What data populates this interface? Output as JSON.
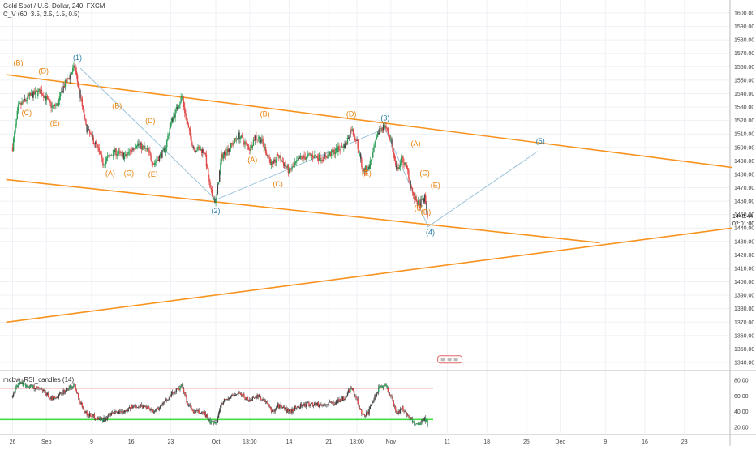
{
  "header": {
    "symbol_line": "Gold Spot / U.S. Dollar, 240, FXCM",
    "indicator_line": "C_V (60, 3.5, 2.5, 1.5, 0.5)",
    "rsi_line": "mcbw_RSI_candles (14)"
  },
  "price_axis": {
    "ticks": [
      1600,
      1590,
      1580,
      1570,
      1560,
      1550,
      1540,
      1530,
      1520,
      1510,
      1500,
      1490,
      1480,
      1470,
      1460,
      1450,
      1440,
      1430,
      1420,
      1410,
      1400,
      1390,
      1380,
      1370,
      1360,
      1350,
      1340
    ],
    "last_price": "1448.44",
    "countdown": "02:01:00"
  },
  "rsi_axis": {
    "ticks": [
      "80.00",
      "60.00",
      "40.00",
      "20.00"
    ]
  },
  "time_axis": {
    "ticks": [
      {
        "label": "26",
        "d": 0
      },
      {
        "label": "Sep",
        "d": 6
      },
      {
        "label": "9",
        "d": 14
      },
      {
        "label": "16",
        "d": 21
      },
      {
        "label": "23",
        "d": 28
      },
      {
        "label": "Oct",
        "d": 36
      },
      {
        "label": "13:00",
        "d": 42
      },
      {
        "label": "14",
        "d": 49
      },
      {
        "label": "21",
        "d": 56
      },
      {
        "label": "13:00",
        "d": 61
      },
      {
        "label": "Nov",
        "d": 67
      },
      {
        "label": "11",
        "d": 77
      },
      {
        "label": "18",
        "d": 84
      },
      {
        "label": "25",
        "d": 91
      },
      {
        "label": "Dec",
        "d": 97
      },
      {
        "label": "9",
        "d": 105
      },
      {
        "label": "16",
        "d": 112
      },
      {
        "label": "23",
        "d": 119
      }
    ]
  },
  "colors": {
    "channel": "#f7931e",
    "wave_path": "#9cc3da",
    "up_candle": "#2e9e58",
    "down_candle": "#e04848",
    "neutral_candle": "#444444",
    "rsi_upper": "#ee4444",
    "rsi_lower": "#44dd44",
    "orange_label": "#e8830c",
    "blue_label": "#2c7da6",
    "grid": "#eef1f6"
  },
  "chart_data": {
    "type": "candlestick",
    "x_unit": "days since Aug 26",
    "ylim": [
      1330,
      1605
    ],
    "price_series": [
      [
        0,
        1500
      ],
      [
        1,
        1530
      ],
      [
        3,
        1538
      ],
      [
        5,
        1542
      ],
      [
        7,
        1530
      ],
      [
        8,
        1532
      ],
      [
        9,
        1545
      ],
      [
        11,
        1560
      ],
      [
        12,
        1538
      ],
      [
        13,
        1515
      ],
      [
        15,
        1500
      ],
      [
        16,
        1488
      ],
      [
        18,
        1497
      ],
      [
        20,
        1493
      ],
      [
        22,
        1503
      ],
      [
        24,
        1497
      ],
      [
        25,
        1488
      ],
      [
        27,
        1498
      ],
      [
        28,
        1518
      ],
      [
        30,
        1538
      ],
      [
        31,
        1516
      ],
      [
        32,
        1500
      ],
      [
        34,
        1497
      ],
      [
        35,
        1468
      ],
      [
        36,
        1459
      ],
      [
        37,
        1493
      ],
      [
        39,
        1503
      ],
      [
        40,
        1509
      ],
      [
        42,
        1499
      ],
      [
        43,
        1508
      ],
      [
        44,
        1506
      ],
      [
        45,
        1496
      ],
      [
        46,
        1486
      ],
      [
        47,
        1494
      ],
      [
        49,
        1482
      ],
      [
        51,
        1492
      ],
      [
        53,
        1494
      ],
      [
        55,
        1492
      ],
      [
        57,
        1497
      ],
      [
        59,
        1502
      ],
      [
        60,
        1514
      ],
      [
        61,
        1504
      ],
      [
        62,
        1483
      ],
      [
        63,
        1484
      ],
      [
        64,
        1498
      ],
      [
        65,
        1514
      ],
      [
        66,
        1516
      ],
      [
        67,
        1506
      ],
      [
        68,
        1482
      ],
      [
        69,
        1492
      ],
      [
        70,
        1482
      ],
      [
        71,
        1463
      ],
      [
        72,
        1457
      ],
      [
        73,
        1462
      ],
      [
        73.5,
        1449
      ]
    ],
    "channel_lines": [
      {
        "from": [
          -1,
          1554
        ],
        "to": [
          127.5,
          1485
        ]
      },
      {
        "from": [
          -1,
          1476
        ],
        "to": [
          104,
          1429
        ]
      },
      {
        "from": [
          -1,
          1370
        ],
        "to": [
          127.5,
          1440
        ]
      }
    ],
    "wave_path": [
      [
        12,
        1559
      ],
      [
        36,
        1461
      ],
      [
        66,
        1514
      ],
      [
        73.6,
        1441
      ],
      [
        93,
        1497
      ]
    ],
    "wave_labels": [
      {
        "t": "(1)",
        "x": 11.5,
        "y": 1565,
        "c": "blue"
      },
      {
        "t": "(2)",
        "x": 36,
        "y": 1451,
        "c": "blue"
      },
      {
        "t": "(3)",
        "x": 66,
        "y": 1520,
        "c": "blue"
      },
      {
        "t": "(4)",
        "x": 74,
        "y": 1435,
        "c": "blue"
      },
      {
        "t": "(5)",
        "x": 93.5,
        "y": 1503,
        "c": "blue"
      },
      {
        "t": "(B)",
        "x": 1,
        "y": 1561,
        "c": "orange"
      },
      {
        "t": "(D)",
        "x": 5.5,
        "y": 1555,
        "c": "orange"
      },
      {
        "t": "(C)",
        "x": 2.5,
        "y": 1524,
        "c": "orange"
      },
      {
        "t": "(E)",
        "x": 7.5,
        "y": 1516,
        "c": "orange"
      },
      {
        "t": "(B)",
        "x": 18.5,
        "y": 1529,
        "c": "orange"
      },
      {
        "t": "(A)",
        "x": 17.3,
        "y": 1479,
        "c": "orange"
      },
      {
        "t": "(C)",
        "x": 20.6,
        "y": 1479,
        "c": "orange"
      },
      {
        "t": "(D)",
        "x": 24.4,
        "y": 1518,
        "c": "orange"
      },
      {
        "t": "(E)",
        "x": 24.9,
        "y": 1478,
        "c": "orange"
      },
      {
        "t": "(B)",
        "x": 44.7,
        "y": 1523,
        "c": "orange"
      },
      {
        "t": "(A)",
        "x": 42.5,
        "y": 1489,
        "c": "orange"
      },
      {
        "t": "(C)",
        "x": 47,
        "y": 1471,
        "c": "orange"
      },
      {
        "t": "(D)",
        "x": 60,
        "y": 1523,
        "c": "orange"
      },
      {
        "t": "(E)",
        "x": 62.7,
        "y": 1479,
        "c": "orange"
      },
      {
        "t": "(A)",
        "x": 71.4,
        "y": 1501,
        "c": "orange"
      },
      {
        "t": "(C)",
        "x": 73,
        "y": 1479,
        "c": "orange"
      },
      {
        "t": "(E)",
        "x": 74.9,
        "y": 1470,
        "c": "orange"
      },
      {
        "t": "(B)",
        "x": 72,
        "y": 1453,
        "c": "orange"
      },
      {
        "t": "(D)",
        "x": 73.2,
        "y": 1450,
        "c": "orange"
      }
    ],
    "rsi": {
      "ylim": [
        10,
        90
      ],
      "upper_level": 70,
      "lower_level": 30,
      "series": [
        [
          0,
          58
        ],
        [
          1,
          78
        ],
        [
          3,
          72
        ],
        [
          5,
          68
        ],
        [
          7,
          56
        ],
        [
          8,
          58
        ],
        [
          9,
          66
        ],
        [
          11,
          74
        ],
        [
          12,
          52
        ],
        [
          13,
          38
        ],
        [
          15,
          32
        ],
        [
          16,
          30
        ],
        [
          18,
          38
        ],
        [
          20,
          42
        ],
        [
          22,
          48
        ],
        [
          24,
          46
        ],
        [
          25,
          40
        ],
        [
          27,
          52
        ],
        [
          28,
          62
        ],
        [
          30,
          72
        ],
        [
          31,
          50
        ],
        [
          32,
          40
        ],
        [
          34,
          38
        ],
        [
          35,
          26
        ],
        [
          36,
          24
        ],
        [
          37,
          52
        ],
        [
          39,
          60
        ],
        [
          40,
          64
        ],
        [
          42,
          54
        ],
        [
          43,
          60
        ],
        [
          44,
          58
        ],
        [
          45,
          50
        ],
        [
          46,
          40
        ],
        [
          47,
          48
        ],
        [
          49,
          40
        ],
        [
          51,
          48
        ],
        [
          53,
          50
        ],
        [
          55,
          48
        ],
        [
          57,
          52
        ],
        [
          59,
          58
        ],
        [
          60,
          72
        ],
        [
          61,
          54
        ],
        [
          62,
          36
        ],
        [
          63,
          38
        ],
        [
          64,
          56
        ],
        [
          65,
          72
        ],
        [
          66,
          74
        ],
        [
          67,
          60
        ],
        [
          68,
          38
        ],
        [
          69,
          44
        ],
        [
          70,
          36
        ],
        [
          71,
          26
        ],
        [
          72,
          24
        ],
        [
          73,
          32
        ],
        [
          73.5,
          24
        ]
      ]
    }
  }
}
